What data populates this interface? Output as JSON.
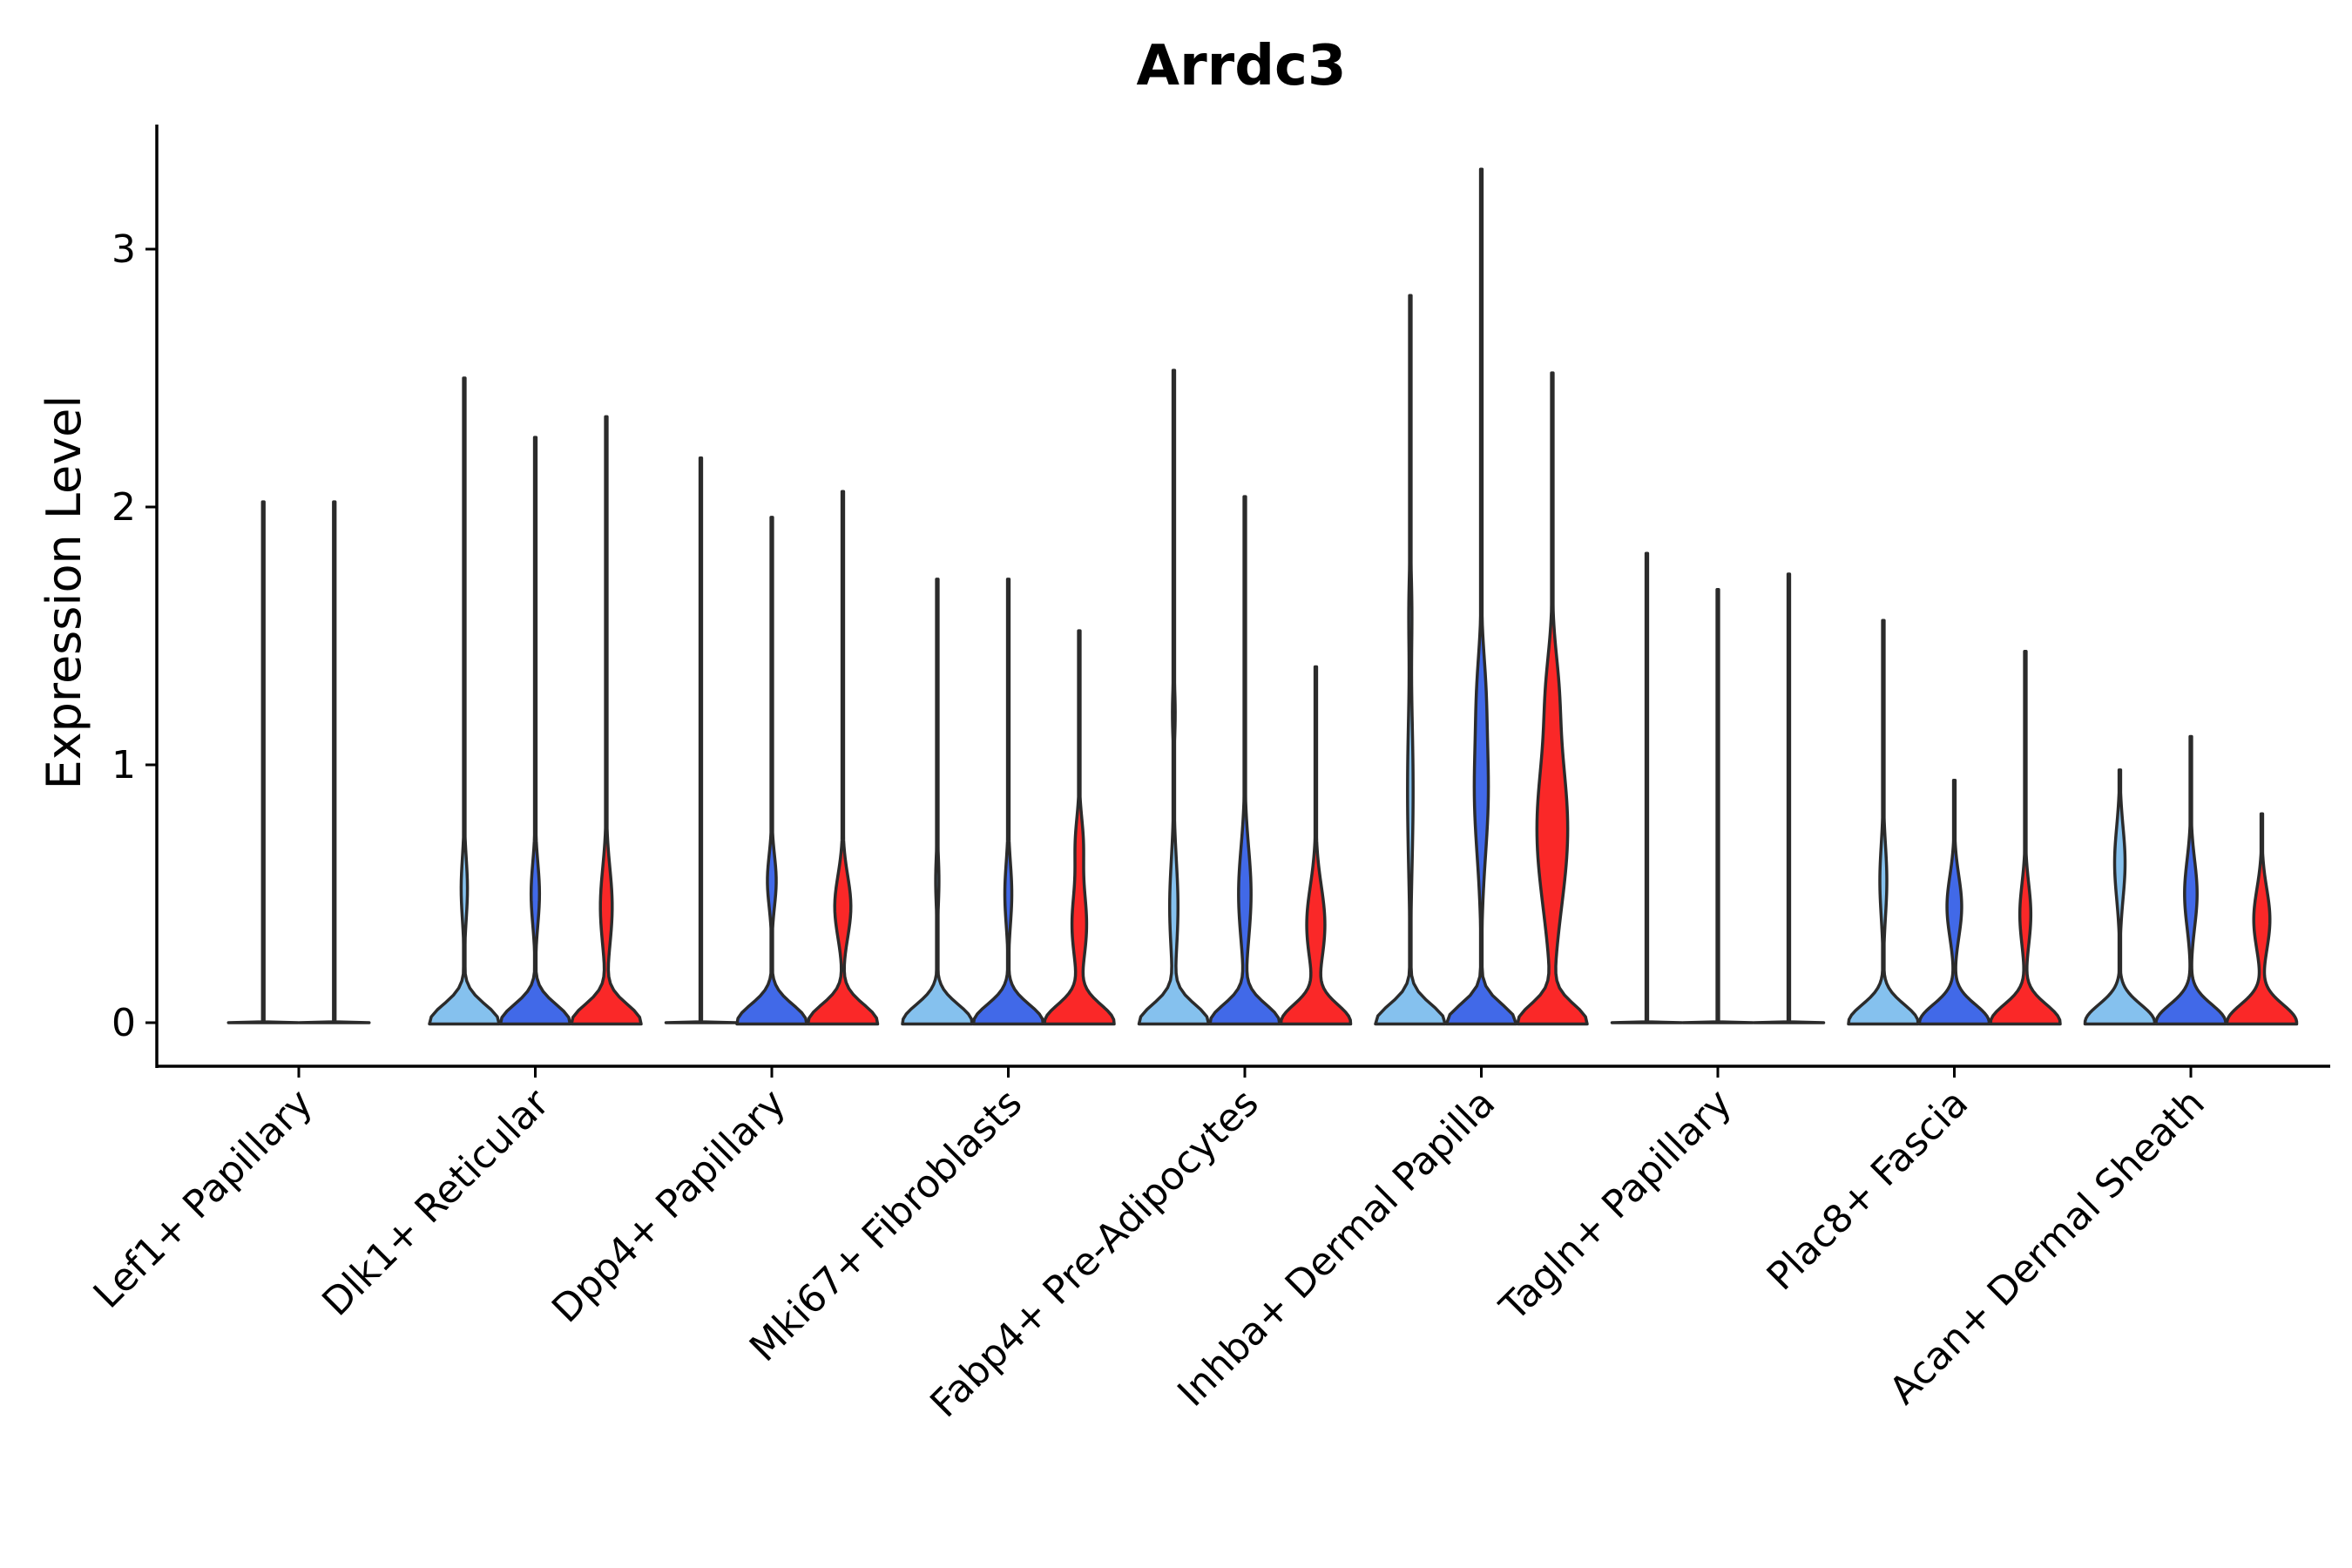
{
  "chart_data": {
    "type": "violin",
    "title": "Arrdc3",
    "xlabel": "",
    "ylabel": "Expression Level",
    "ylim": [
      -0.17,
      3.5
    ],
    "yticks": [
      0,
      1,
      2,
      3
    ],
    "grid": false,
    "legend": "none",
    "series_colors": [
      "#85c1ee",
      "#4169e8",
      "#fa2828"
    ],
    "categories": [
      "Lef1+ Papillary",
      "Dlk1+ Reticular",
      "Dpp4+ Papillary",
      "Mki67+ Fibroblasts",
      "Fabp4+ Pre-Adipocytes",
      "Inhba+ Dermal Papilla",
      "Tagln+ Papillary",
      "Plac8+ Fascia",
      "Acan+ Dermal Sheath"
    ],
    "groups": [
      {
        "category": "Lef1+ Papillary",
        "n": 2,
        "violins": [
          {
            "series": 0,
            "max": 2.02,
            "base": 0.03,
            "bumps": []
          },
          {
            "series": 1,
            "max": 2.02,
            "base": 0.03,
            "bumps": []
          }
        ]
      },
      {
        "category": "Dlk1+ Reticular",
        "n": 3,
        "violins": [
          {
            "series": 0,
            "max": 2.5,
            "base": 1.0,
            "bumps": [
              [
                0.52,
                0.12,
                0.09
              ]
            ]
          },
          {
            "series": 1,
            "max": 2.27,
            "base": 1.0,
            "bumps": [
              [
                0.5,
                0.12,
                0.12
              ]
            ]
          },
          {
            "series": 2,
            "max": 2.35,
            "base": 1.0,
            "bumps": [
              [
                0.45,
                0.15,
                0.17
              ]
            ]
          }
        ]
      },
      {
        "category": "Dpp4+ Papillary",
        "n": 3,
        "violins": [
          {
            "series": 0,
            "max": 2.19,
            "base": 0.03,
            "bumps": []
          },
          {
            "series": 1,
            "max": 1.96,
            "base": 0.95,
            "bumps": [
              [
                0.55,
                0.1,
                0.12
              ]
            ]
          },
          {
            "series": 2,
            "max": 2.06,
            "base": 0.95,
            "bumps": [
              [
                0.45,
                0.12,
                0.22
              ]
            ]
          }
        ]
      },
      {
        "category": "Mki67+ Fibroblasts",
        "n": 3,
        "violins": [
          {
            "series": 0,
            "max": 1.72,
            "base": 0.85,
            "bumps": [
              [
                0.55,
                0.1,
                0.04
              ]
            ]
          },
          {
            "series": 1,
            "max": 1.72,
            "base": 0.8,
            "bumps": [
              [
                0.5,
                0.12,
                0.08
              ]
            ]
          },
          {
            "series": 2,
            "max": 1.52,
            "base": 0.95,
            "bumps": [
              [
                0.38,
                0.14,
                0.2
              ],
              [
                0.7,
                0.1,
                0.1
              ]
            ]
          }
        ]
      },
      {
        "category": "Fabp4+ Pre-Adipocytes",
        "n": 3,
        "violins": [
          {
            "series": 0,
            "max": 2.53,
            "base": 1.0,
            "bumps": [
              [
                0.45,
                0.18,
                0.12
              ],
              [
                1.2,
                0.1,
                0.04
              ]
            ]
          },
          {
            "series": 1,
            "max": 2.04,
            "base": 1.0,
            "bumps": [
              [
                0.5,
                0.18,
                0.18
              ]
            ]
          },
          {
            "series": 2,
            "max": 1.38,
            "base": 0.95,
            "bumps": [
              [
                0.38,
                0.15,
                0.25
              ]
            ]
          }
        ]
      },
      {
        "category": "Inhba+ Dermal Papilla",
        "n": 3,
        "violins": [
          {
            "series": 0,
            "max": 2.82,
            "base": 1.0,
            "bumps": [
              [
                0.9,
                0.3,
                0.08
              ],
              [
                1.6,
                0.15,
                0.04
              ]
            ]
          },
          {
            "series": 1,
            "max": 3.31,
            "base": 1.0,
            "bumps": [
              [
                0.9,
                0.25,
                0.2
              ],
              [
                1.3,
                0.15,
                0.08
              ]
            ]
          },
          {
            "series": 2,
            "max": 2.52,
            "base": 1.0,
            "bumps": [
              [
                0.75,
                0.3,
                0.45
              ],
              [
                1.3,
                0.15,
                0.12
              ]
            ]
          }
        ]
      },
      {
        "category": "Tagln+ Papillary",
        "n": 3,
        "violins": [
          {
            "series": 0,
            "max": 1.82,
            "base": 0.03,
            "bumps": []
          },
          {
            "series": 1,
            "max": 1.68,
            "base": 0.03,
            "bumps": []
          },
          {
            "series": 2,
            "max": 1.74,
            "base": 0.03,
            "bumps": []
          }
        ]
      },
      {
        "category": "Plac8+ Fascia",
        "n": 3,
        "violins": [
          {
            "series": 0,
            "max": 1.56,
            "base": 1.0,
            "bumps": [
              [
                0.55,
                0.14,
                0.1
              ]
            ]
          },
          {
            "series": 1,
            "max": 0.94,
            "base": 0.95,
            "bumps": [
              [
                0.45,
                0.12,
                0.2
              ]
            ]
          },
          {
            "series": 2,
            "max": 1.44,
            "base": 0.95,
            "bumps": [
              [
                0.42,
                0.12,
                0.15
              ]
            ]
          }
        ]
      },
      {
        "category": "Acan+ Dermal Sheath",
        "n": 3,
        "violins": [
          {
            "series": 0,
            "max": 0.98,
            "base": 1.0,
            "bumps": [
              [
                0.62,
                0.14,
                0.15
              ]
            ]
          },
          {
            "series": 1,
            "max": 1.11,
            "base": 1.0,
            "bumps": [
              [
                0.5,
                0.13,
                0.18
              ]
            ]
          },
          {
            "series": 2,
            "max": 0.81,
            "base": 0.95,
            "bumps": [
              [
                0.4,
                0.12,
                0.22
              ]
            ]
          }
        ]
      }
    ]
  }
}
